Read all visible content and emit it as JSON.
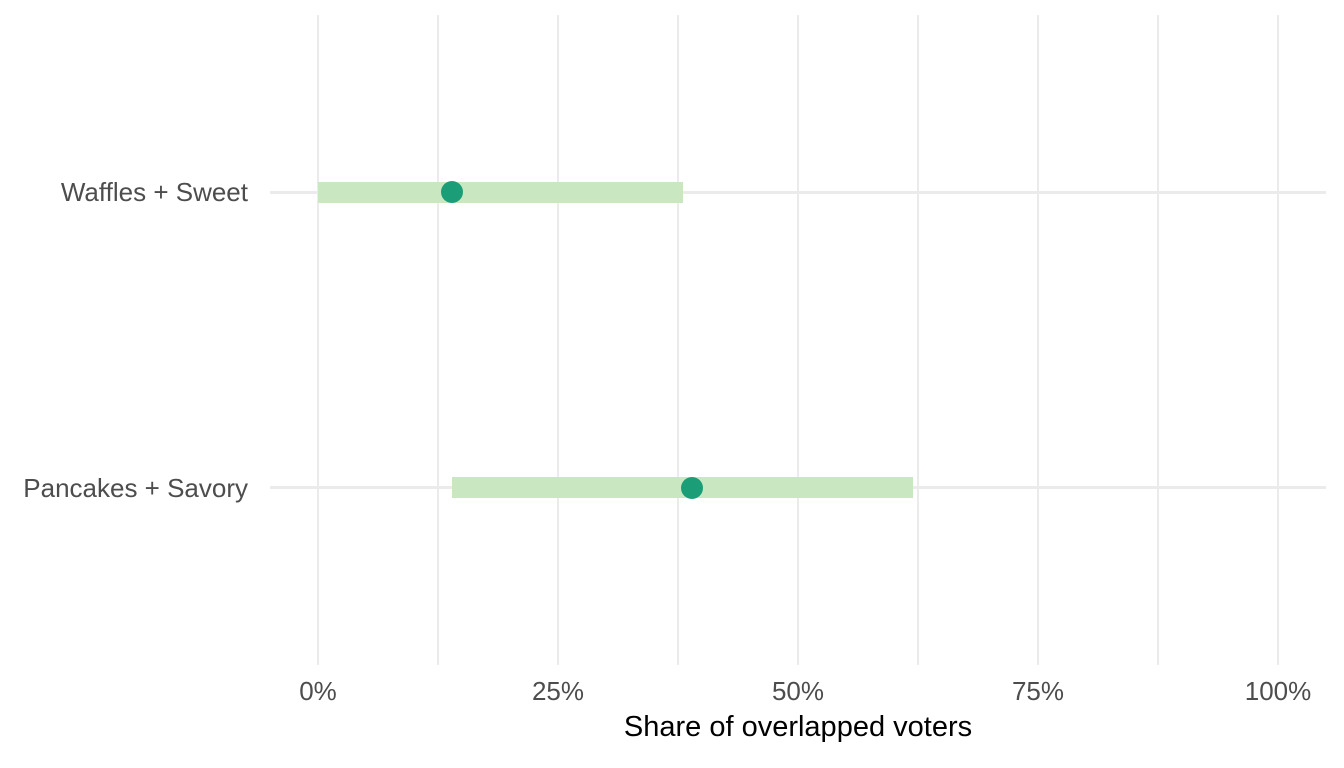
{
  "chart_data": {
    "type": "scatter",
    "subtype": "point-estimate with interval bars (dot + range)",
    "title": "",
    "xlabel": "Share of overlapped voters",
    "ylabel": "",
    "xlim": [
      0,
      100
    ],
    "x_major_ticks": [
      0,
      25,
      50,
      75,
      100
    ],
    "x_tick_labels": [
      "0%",
      "25%",
      "50%",
      "75%",
      "100%"
    ],
    "x_minor_ticks": [
      12.5,
      37.5,
      62.5,
      87.5
    ],
    "grid": "vertical major+minor gridlines, horizontal major gridline per row, no axis lines or tick marks",
    "legend": "none",
    "rows": [
      {
        "label": "Waffles + Sweet",
        "point": 14,
        "low": 0,
        "high": 38
      },
      {
        "label": "Pancakes + Savory",
        "point": 39,
        "low": 14,
        "high": 62
      }
    ]
  },
  "colors": {
    "interval_bar": "#c9e8c1",
    "point": "#1b9e77",
    "grid": "#ebebeb",
    "axis_text": "#4d4d4d",
    "axis_title": "#000000",
    "background": "#ffffff"
  }
}
